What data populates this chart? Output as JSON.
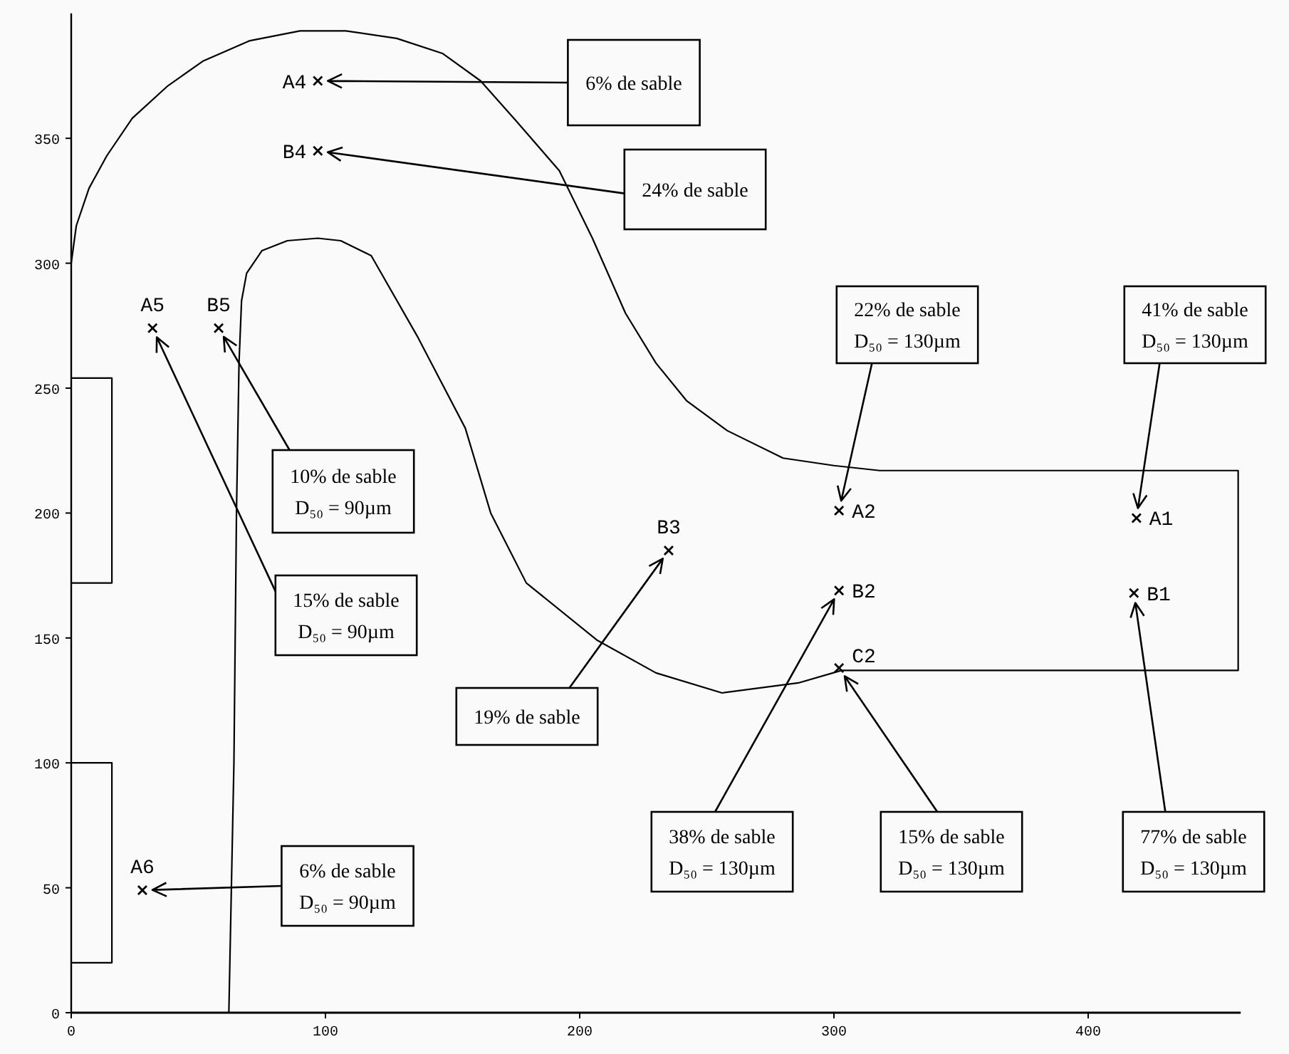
{
  "chart_data": {
    "type": "scatter",
    "xlim": [
      0,
      460
    ],
    "ylim": [
      0,
      400
    ],
    "xticks": [
      0,
      100,
      200,
      300,
      400
    ],
    "yticks": [
      0,
      50,
      100,
      150,
      200,
      250,
      300,
      350
    ],
    "grid": false,
    "series": [
      {
        "type": "line",
        "color": "#000000",
        "x": [
          0,
          2,
          7,
          14,
          24,
          38,
          52,
          70,
          90,
          108,
          128,
          146,
          161,
          175,
          192,
          205,
          218,
          230,
          242,
          258,
          280,
          300,
          318,
          459,
          459,
          319,
          303,
          286,
          256,
          230,
          207,
          179,
          165,
          155,
          136,
          118,
          106,
          97,
          85,
          75,
          69,
          67,
          66,
          65,
          64,
          63,
          62
        ],
        "values": [
          300,
          315,
          330,
          343,
          358,
          371,
          381,
          389,
          393,
          393,
          390,
          384,
          373,
          357,
          337,
          310,
          280,
          260,
          245,
          233,
          222,
          219,
          217,
          217,
          137,
          137,
          137,
          132,
          128,
          136,
          149,
          172,
          200,
          234,
          271,
          303,
          309,
          310,
          309,
          305,
          296,
          285,
          260,
          200,
          100,
          50,
          0
        ]
      },
      {
        "type": "line",
        "color": "#000000",
        "x": [
          0,
          16,
          16,
          0
        ],
        "values": [
          20,
          20,
          100,
          100
        ]
      },
      {
        "type": "line",
        "color": "#000000",
        "x": [
          0,
          16,
          16,
          0
        ],
        "values": [
          172,
          172,
          254,
          254
        ]
      },
      {
        "marker": "cross",
        "color": "#000000",
        "x": [
          97,
          97,
          32,
          58,
          28,
          235,
          302,
          302,
          302,
          419,
          418
        ],
        "values": [
          373,
          345,
          274,
          274,
          49,
          185,
          201,
          169,
          138,
          198,
          168
        ]
      }
    ],
    "annotations": [
      {
        "text": "A4",
        "x": 97,
        "y": 373
      },
      {
        "text": "B4",
        "x": 97,
        "y": 345
      },
      {
        "text": "A5",
        "x": 32,
        "y": 274
      },
      {
        "text": "B5",
        "x": 58,
        "y": 274
      },
      {
        "text": "A6",
        "x": 28,
        "y": 49
      },
      {
        "text": "B3",
        "x": 235,
        "y": 185
      },
      {
        "text": "A2",
        "x": 302,
        "y": 201
      },
      {
        "text": "B2",
        "x": 302,
        "y": 169
      },
      {
        "text": "C2",
        "x": 302,
        "y": 138
      },
      {
        "text": "A1",
        "x": 419,
        "y": 198
      },
      {
        "text": "B1",
        "x": 418,
        "y": 168
      },
      {
        "text": "6% de sable",
        "x": 97,
        "y": 373
      },
      {
        "text": "24% de sable",
        "x": 97,
        "y": 345
      },
      {
        "text": "10% de sable\nD₅₀ = 90µm",
        "x": 58,
        "y": 274
      },
      {
        "text": "15% de sable\nD₅₀ = 90µm",
        "x": 32,
        "y": 274
      },
      {
        "text": "19% de sable",
        "x": 235,
        "y": 185
      },
      {
        "text": "22% de sable\nD₅₀ = 130µm",
        "x": 302,
        "y": 201
      },
      {
        "text": "41% de sable\nD₅₀ = 130µm",
        "x": 419,
        "y": 198
      },
      {
        "text": "38% de sable\nD₅₀ = 130µm",
        "x": 302,
        "y": 169
      },
      {
        "text": "15% de sable\nD₅₀ = 130µm",
        "x": 302,
        "y": 138
      },
      {
        "text": "77% de sable\nD₅₀ = 130µm",
        "x": 418,
        "y": 168
      },
      {
        "text": "6% de sable\nD₅₀ = 90µm",
        "x": 28,
        "y": 49
      }
    ]
  }
}
